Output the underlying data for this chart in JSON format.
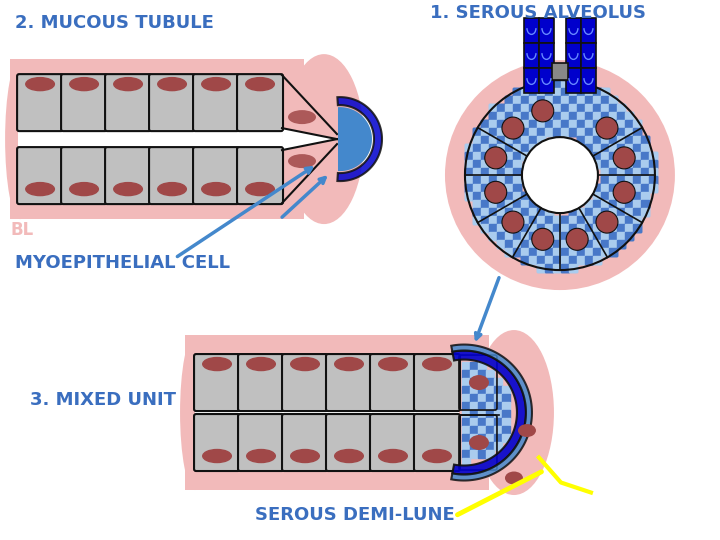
{
  "title1": "2. MUCOUS TUBULE",
  "title2": "1. SEROUS ALVEOLUS",
  "title3": "3. MIXED UNIT",
  "label_bl": "BL",
  "label_myo": "MYOEPITHELIAL CELL",
  "label_demi": "SEROUS DEMI-LUNE",
  "color_blue": "#3A6EBF",
  "color_blue_medium": "#4488CC",
  "color_pink_bg": "#F2BABA",
  "color_gray_cell": "#C0C0C0",
  "color_dark_red": "#A04848",
  "color_checker_blue": "#4878C8",
  "color_checker_white": "#AACCEE",
  "color_black": "#111111",
  "color_dark_blue": "#0000CC",
  "color_gray_duct": "#888888",
  "color_yellow": "#FFFF00",
  "color_white": "#FFFFFF",
  "bg_color": "#FFFFFF"
}
